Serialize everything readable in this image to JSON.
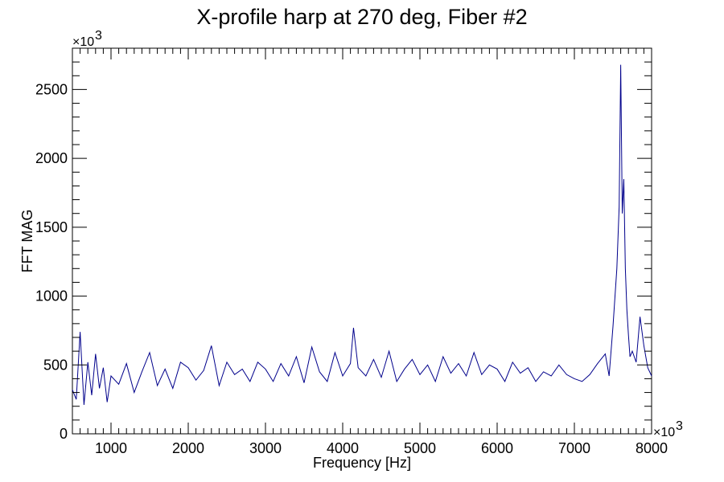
{
  "chart_data": {
    "type": "line",
    "title": "X-profile harp at 270 deg, Fiber #2",
    "xlabel": "Frequency [Hz]",
    "ylabel": "FFT MAG",
    "x_multiplier_label": "×10",
    "x_multiplier_exp": "3",
    "y_multiplier_label": "×10",
    "y_multiplier_exp": "3",
    "xlim": [
      500,
      8000
    ],
    "ylim": [
      0,
      2800
    ],
    "x_ticks": [
      1000,
      2000,
      3000,
      4000,
      5000,
      6000,
      7000,
      8000
    ],
    "x_tick_labels": [
      "1000",
      "2000",
      "3000",
      "4000",
      "5000",
      "6000",
      "7000",
      "8000"
    ],
    "y_ticks": [
      0,
      500,
      1000,
      1500,
      2000,
      2500
    ],
    "y_tick_labels": [
      "0",
      "500",
      "1000",
      "1500",
      "2000",
      "2500"
    ],
    "grid": false,
    "colors": {
      "series": "#00008b",
      "axis": "#000000"
    },
    "series": [
      {
        "x": [
          500,
          550,
          600,
          650,
          700,
          750,
          800,
          850,
          900,
          950,
          1000,
          1100,
          1200,
          1300,
          1400,
          1500,
          1600,
          1700,
          1800,
          1900,
          2000,
          2100,
          2200,
          2300,
          2400,
          2500,
          2600,
          2700,
          2800,
          2900,
          3000,
          3100,
          3200,
          3300,
          3400,
          3500,
          3600,
          3700,
          3800,
          3900,
          4000,
          4100,
          4140,
          4200,
          4300,
          4400,
          4500,
          4600,
          4700,
          4800,
          4900,
          5000,
          5100,
          5200,
          5300,
          5400,
          5500,
          5600,
          5700,
          5800,
          5900,
          6000,
          6100,
          6200,
          6300,
          6400,
          6500,
          6600,
          6700,
          6800,
          6900,
          7000,
          7100,
          7200,
          7300,
          7400,
          7450,
          7500,
          7550,
          7580,
          7600,
          7620,
          7640,
          7660,
          7680,
          7700,
          7720,
          7750,
          7800,
          7850,
          7900,
          7950,
          8000
        ],
        "values": [
          320,
          250,
          740,
          210,
          520,
          280,
          580,
          330,
          480,
          230,
          420,
          360,
          510,
          300,
          450,
          590,
          350,
          470,
          330,
          520,
          480,
          390,
          460,
          640,
          350,
          520,
          430,
          470,
          380,
          520,
          470,
          380,
          510,
          420,
          560,
          370,
          630,
          450,
          380,
          590,
          420,
          510,
          770,
          480,
          420,
          540,
          410,
          600,
          380,
          470,
          540,
          430,
          500,
          380,
          560,
          440,
          510,
          420,
          590,
          430,
          500,
          470,
          380,
          520,
          440,
          480,
          380,
          450,
          420,
          500,
          430,
          400,
          380,
          430,
          510,
          580,
          420,
          780,
          1200,
          1650,
          2680,
          1600,
          1850,
          1200,
          900,
          720,
          560,
          600,
          520,
          850,
          640,
          480,
          420
        ]
      }
    ]
  }
}
